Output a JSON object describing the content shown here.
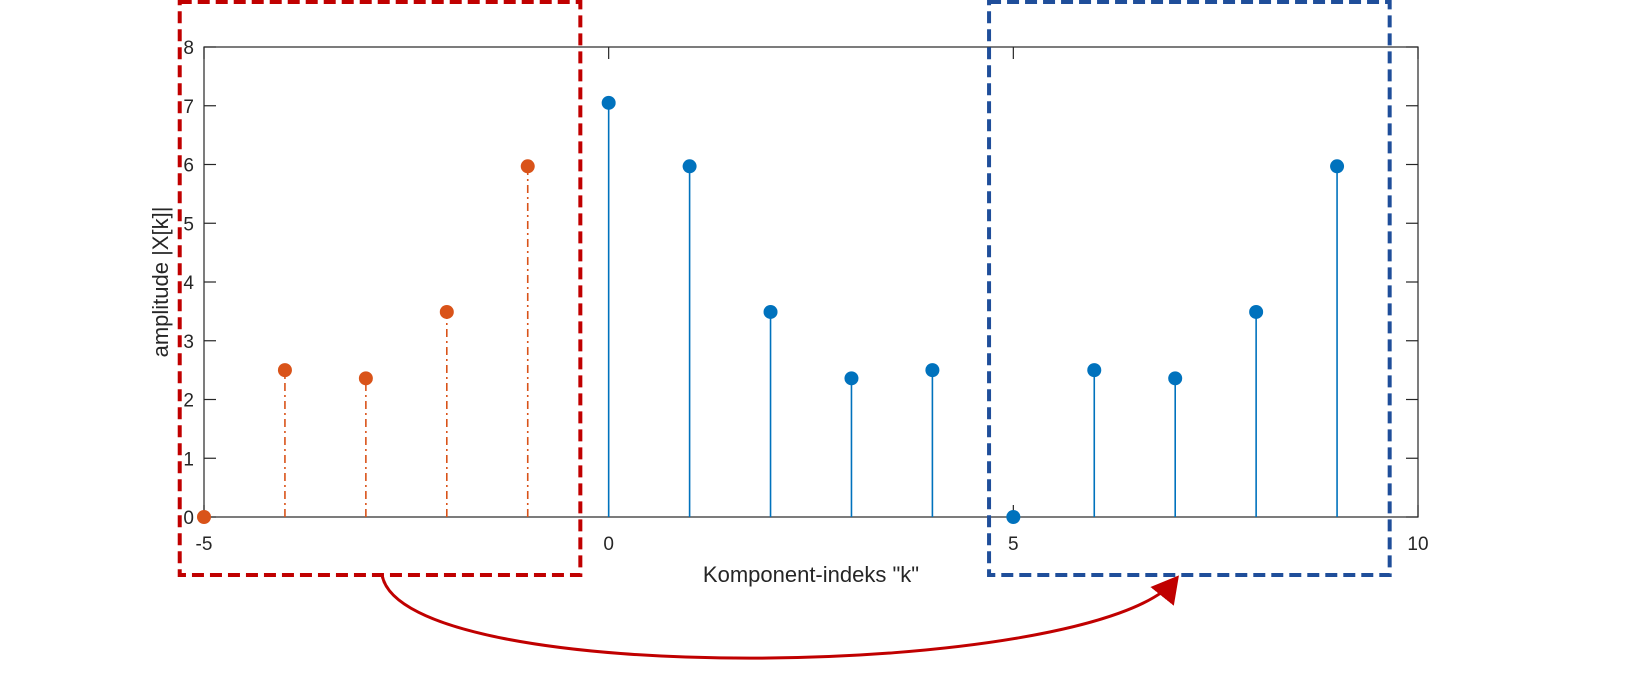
{
  "chart_data": {
    "type": "stem",
    "title": "",
    "xlabel": "Komponent-indeks \"k\"",
    "ylabel": "amplitude |X[k]|",
    "xlim": [
      -5,
      10
    ],
    "ylim": [
      0,
      8
    ],
    "xticks": [
      "-5",
      "0",
      "5",
      "10"
    ],
    "yticks": [
      "0",
      "1",
      "2",
      "3",
      "4",
      "5",
      "6",
      "7",
      "8"
    ],
    "grid": false,
    "series": [
      {
        "style": "dash-dot",
        "color": "#D95319",
        "x": [
          -5,
          -4,
          -3,
          -2,
          -1
        ],
        "y": [
          0,
          2.5,
          2.36,
          3.49,
          5.97
        ]
      },
      {
        "style": "solid",
        "color": "#0072BD",
        "x": [
          0,
          1,
          2,
          3,
          4,
          5,
          6,
          7,
          8,
          9
        ],
        "y": [
          7.05,
          5.97,
          3.49,
          2.36,
          2.5,
          0,
          2.5,
          2.36,
          3.49,
          5.97
        ]
      }
    ],
    "annotations": [
      {
        "type": "dashed-box",
        "color": "#C00000",
        "x_range": [
          -5.3,
          -0.35
        ]
      },
      {
        "type": "dashed-box",
        "color": "#1F4E9A",
        "x_range": [
          4.7,
          9.65
        ]
      },
      {
        "type": "curved-arrow",
        "color": "#C00000",
        "from_x": -2.8,
        "to_x": 7.0
      }
    ]
  }
}
